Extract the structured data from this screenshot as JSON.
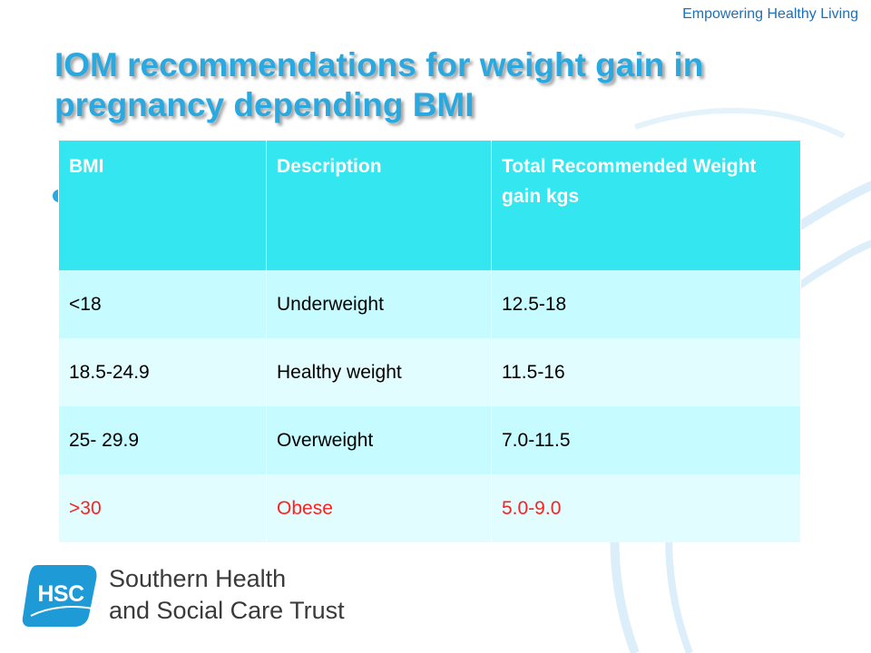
{
  "header": {
    "tagline": "Empowering Healthy Living"
  },
  "slide": {
    "title": "IOM recommendations for weight gain in pregnancy depending BMI"
  },
  "table": {
    "headers": [
      "BMI",
      "Description",
      "Total Recommended Weight gain kgs"
    ],
    "rows": [
      [
        "<18",
        "Underweight",
        "12.5-18"
      ],
      [
        "18.5-24.9",
        "Healthy weight",
        "11.5-16"
      ],
      [
        "25- 29.9",
        "Overweight",
        "7.0-11.5"
      ],
      [
        ">30",
        "Obese",
        "5.0-9.0"
      ]
    ]
  },
  "footer": {
    "logo_badge": "HSC",
    "org_line1": "Southern Health",
    "org_line2": "and Social Care Trust"
  },
  "colors": {
    "title": "#2aa9e0",
    "header_row": "#33e6ef",
    "row_odd": "#c6fbff",
    "row_even": "#e2fdff",
    "obese_text": "#ff1f1f",
    "logo_blue": "#1e9ad6"
  }
}
